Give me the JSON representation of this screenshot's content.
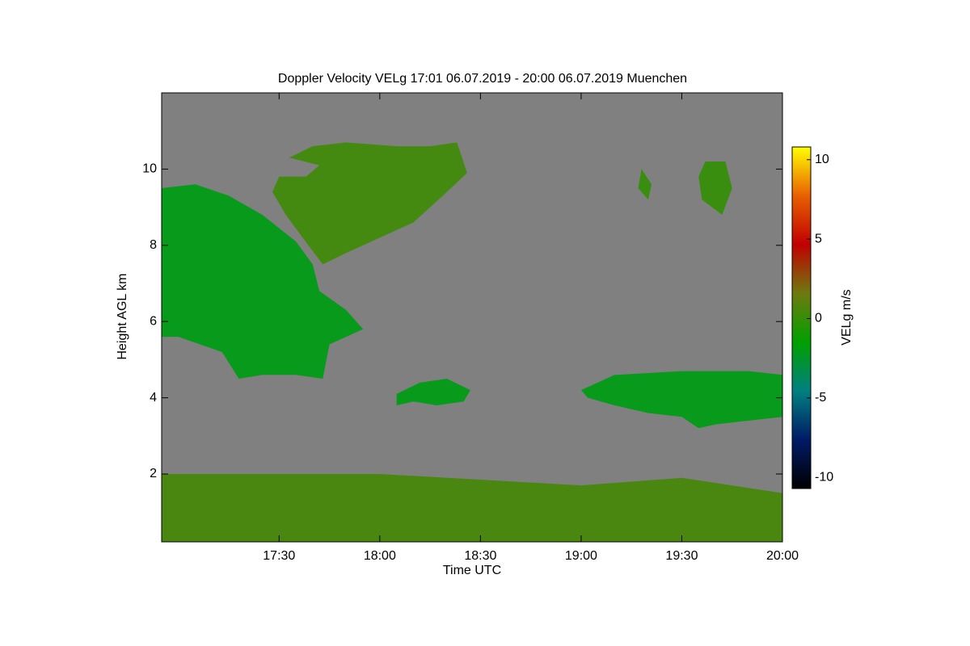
{
  "chart_data": {
    "type": "time-height",
    "title": "Doppler Velocity VELg   17:01 06.07.2019 - 20:00 06.07.2019 Muenchen",
    "x_label": "Time UTC",
    "y_label": "Height AGL km",
    "xlim": [
      "16:55",
      "20:00"
    ],
    "xticks": [
      "17:30",
      "18:00",
      "18:30",
      "19:00",
      "19:30",
      "20:00"
    ],
    "ylim": [
      0.22,
      12
    ],
    "yticks": [
      2,
      4,
      6,
      8,
      10
    ],
    "background_color": "#808080",
    "colorbar": {
      "label": "VELg m/s",
      "clim": [
        -10.7,
        10.8
      ],
      "ticks": [
        10,
        5,
        0,
        -5,
        -10
      ],
      "colormap": [
        "#000000",
        "#001a66",
        "#008080",
        "#00a000",
        "#6e7a10",
        "#c00000",
        "#e86000",
        "#ffff00"
      ]
    },
    "regions": [
      {
        "velocity": -2,
        "times": [
          "16:55",
          "17:05",
          "17:15",
          "17:25",
          "17:35",
          "17:40",
          "17:42",
          "17:50",
          "17:55",
          "17:45",
          "17:43",
          "17:35",
          "17:25",
          "17:18",
          "17:13",
          "17:00",
          "16:55"
        ],
        "heights": [
          9.5,
          9.6,
          9.3,
          8.8,
          8.1,
          7.5,
          6.8,
          6.3,
          5.8,
          5.4,
          4.5,
          4.6,
          4.6,
          4.5,
          5.2,
          5.6,
          5.6
        ]
      },
      {
        "velocity": 0.3,
        "times": [
          "17:33",
          "17:40",
          "17:50",
          "18:05",
          "18:15",
          "18:23",
          "18:26",
          "18:20",
          "18:10",
          "18:00",
          "17:50",
          "17:43",
          "17:37",
          "17:32",
          "17:28",
          "17:30",
          "17:38",
          "17:42"
        ],
        "heights": [
          10.3,
          10.6,
          10.7,
          10.6,
          10.6,
          10.7,
          9.9,
          9.4,
          8.6,
          8.2,
          7.8,
          7.5,
          8.2,
          8.8,
          9.4,
          9.8,
          9.8,
          10.1
        ]
      },
      {
        "velocity": -2,
        "times": [
          "18:05",
          "18:12",
          "18:20",
          "18:27",
          "18:25",
          "18:17",
          "18:10",
          "18:05"
        ],
        "heights": [
          4.1,
          4.4,
          4.5,
          4.2,
          3.9,
          3.8,
          3.9,
          3.8
        ]
      },
      {
        "velocity": -2,
        "times": [
          "19:00",
          "19:10",
          "19:30",
          "19:50",
          "20:00",
          "20:00",
          "19:50",
          "19:40",
          "19:35",
          "19:30",
          "19:20",
          "19:10",
          "19:02"
        ],
        "heights": [
          4.2,
          4.6,
          4.7,
          4.7,
          4.6,
          3.5,
          3.4,
          3.3,
          3.2,
          3.5,
          3.6,
          3.8,
          4.0
        ]
      },
      {
        "velocity": 0,
        "times": [
          "19:37",
          "19:43",
          "19:45",
          "19:42",
          "19:36",
          "19:35"
        ],
        "heights": [
          10.2,
          10.2,
          9.5,
          8.8,
          9.2,
          9.8
        ]
      },
      {
        "velocity": 0,
        "times": [
          "19:18",
          "19:21",
          "19:20",
          "19:17"
        ],
        "heights": [
          10.0,
          9.6,
          9.2,
          9.5
        ]
      },
      {
        "velocity": 0.5,
        "times": [
          "16:55",
          "18:00",
          "19:00",
          "19:30",
          "20:00",
          "20:00",
          "16:55"
        ],
        "heights": [
          2.0,
          2.0,
          1.7,
          1.9,
          1.5,
          0.22,
          0.22
        ]
      }
    ]
  }
}
